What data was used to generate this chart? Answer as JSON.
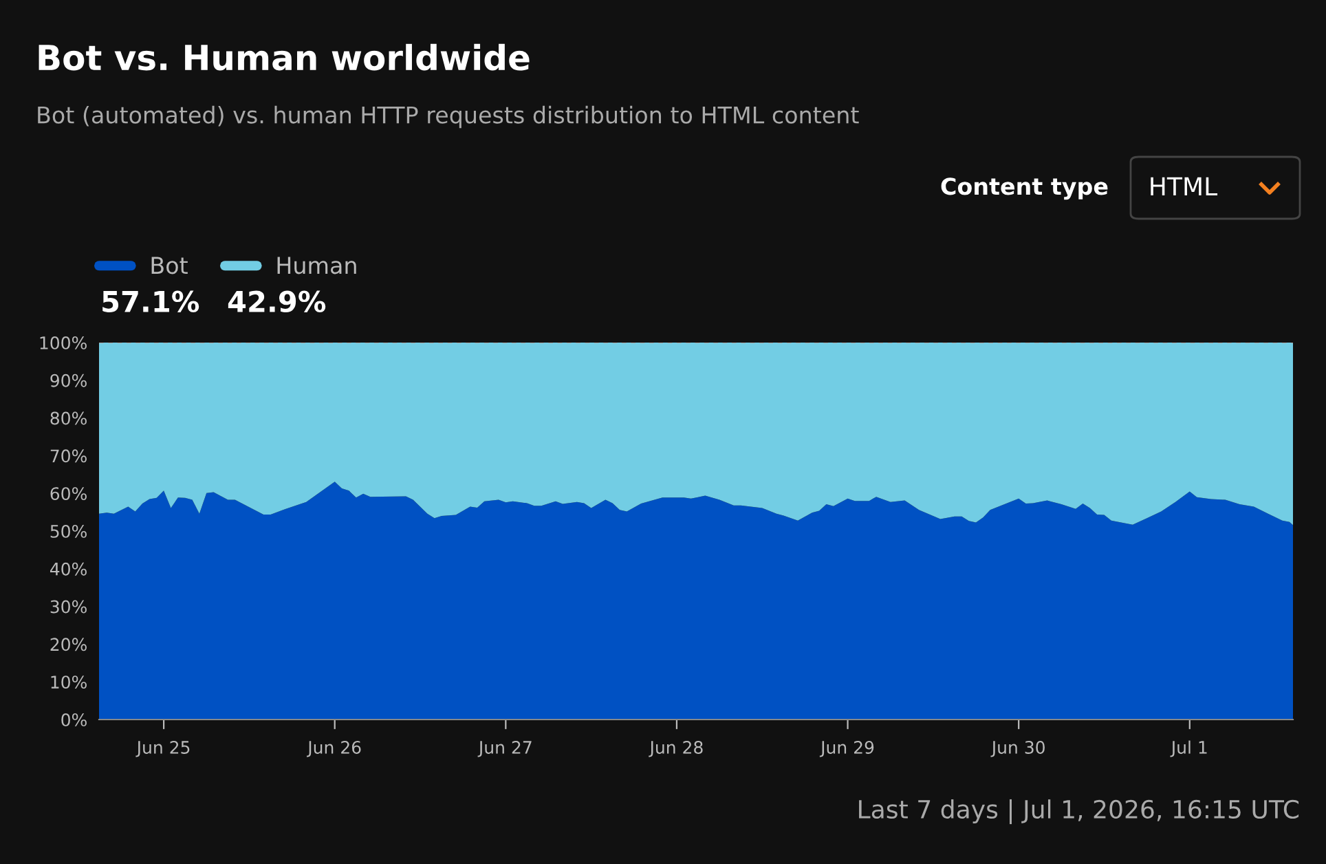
{
  "chart_data": {
    "type": "area",
    "stacked": true,
    "title": "Bot vs. Human worldwide",
    "subtitle": "Bot (automated) vs. human HTTP requests distribution to HTML content",
    "x": [
      "2026-06-24T14:55",
      "2026-06-24T16:00",
      "2026-06-24T17:00",
      "2026-06-24T19:00",
      "2026-06-24T20:00",
      "2026-06-24T21:00",
      "2026-06-24T22:00",
      "2026-06-24T23:00",
      "2026-06-25T00:00",
      "2026-06-25T01:00",
      "2026-06-25T02:00",
      "2026-06-25T03:00",
      "2026-06-25T04:00",
      "2026-06-25T05:00",
      "2026-06-25T06:00",
      "2026-06-25T07:00",
      "2026-06-25T09:00",
      "2026-06-25T10:00",
      "2026-06-25T14:00",
      "2026-06-25T15:00",
      "2026-06-25T17:00",
      "2026-06-25T20:00",
      "2026-06-26T00:00",
      "2026-06-26T01:00",
      "2026-06-26T02:00",
      "2026-06-26T03:00",
      "2026-06-26T04:00",
      "2026-06-26T05:00",
      "2026-06-26T10:00",
      "2026-06-26T11:00",
      "2026-06-26T13:00",
      "2026-06-26T14:00",
      "2026-06-26T15:00",
      "2026-06-26T17:00",
      "2026-06-26T19:00",
      "2026-06-26T20:00",
      "2026-06-26T21:00",
      "2026-06-26T23:00",
      "2026-06-27T00:00",
      "2026-06-27T01:00",
      "2026-06-27T03:00",
      "2026-06-27T04:00",
      "2026-06-27T05:00",
      "2026-06-27T07:00",
      "2026-06-27T08:00",
      "2026-06-27T10:00",
      "2026-06-27T11:00",
      "2026-06-27T12:00",
      "2026-06-27T14:00",
      "2026-06-27T15:00",
      "2026-06-27T16:00",
      "2026-06-27T17:00",
      "2026-06-27T19:00",
      "2026-06-27T22:00",
      "2026-06-28T01:00",
      "2026-06-28T02:00",
      "2026-06-28T03:00",
      "2026-06-28T04:00",
      "2026-06-28T06:00",
      "2026-06-28T08:00",
      "2026-06-28T09:00",
      "2026-06-28T12:00",
      "2026-06-28T14:00",
      "2026-06-28T15:00",
      "2026-06-28T17:00",
      "2026-06-28T19:00",
      "2026-06-28T20:00",
      "2026-06-28T21:00",
      "2026-06-28T22:00",
      "2026-06-29T00:00",
      "2026-06-29T01:00",
      "2026-06-29T03:00",
      "2026-06-29T04:00",
      "2026-06-29T06:00",
      "2026-06-29T08:00",
      "2026-06-29T10:00",
      "2026-06-29T13:00",
      "2026-06-29T15:00",
      "2026-06-29T16:00",
      "2026-06-29T17:00",
      "2026-06-29T18:00",
      "2026-06-29T19:00",
      "2026-06-29T20:00",
      "2026-06-29T22:00",
      "2026-06-30T00:00",
      "2026-06-30T01:00",
      "2026-06-30T02:00",
      "2026-06-30T04:00",
      "2026-06-30T06:00",
      "2026-06-30T08:00",
      "2026-06-30T09:00",
      "2026-06-30T10:00",
      "2026-06-30T11:00",
      "2026-06-30T12:00",
      "2026-06-30T13:00",
      "2026-06-30T14:00",
      "2026-06-30T16:00",
      "2026-06-30T18:00",
      "2026-06-30T20:00",
      "2026-06-30T22:00",
      "2026-07-01T00:00",
      "2026-07-01T01:00",
      "2026-07-01T03:00",
      "2026-07-01T05:00",
      "2026-07-01T07:00",
      "2026-07-01T09:00",
      "2026-07-01T11:00",
      "2026-07-01T13:00",
      "2026-07-01T14:00",
      "2026-07-01T14:30"
    ],
    "series": [
      {
        "name": "Bot",
        "color": "#0051c3",
        "values": [
          54.6,
          54.9,
          54.6,
          56.5,
          55.2,
          57.3,
          58.5,
          58.8,
          60.7,
          56.1,
          58.9,
          58.8,
          58.3,
          54.6,
          60.1,
          60.3,
          58.3,
          58.3,
          54.4,
          54.4,
          55.8,
          57.7,
          63.1,
          61.3,
          60.7,
          58.9,
          59.9,
          59.1,
          59.2,
          58.3,
          54.6,
          53.4,
          54.0,
          54.3,
          56.5,
          56.2,
          57.9,
          58.3,
          57.6,
          57.9,
          57.4,
          56.7,
          56.7,
          57.9,
          57.2,
          57.7,
          57.4,
          56.1,
          58.3,
          57.4,
          55.6,
          55.2,
          57.3,
          58.9,
          58.9,
          58.6,
          59.0,
          59.4,
          58.3,
          56.8,
          56.8,
          56.1,
          54.6,
          54.1,
          52.8,
          54.9,
          55.4,
          57.1,
          56.6,
          58.6,
          58.0,
          58.0,
          59.1,
          57.7,
          58.1,
          55.6,
          53.2,
          53.9,
          53.9,
          52.7,
          52.3,
          53.6,
          55.6,
          57.1,
          58.6,
          57.3,
          57.4,
          58.1,
          57.1,
          55.9,
          57.3,
          56.1,
          54.4,
          54.3,
          52.8,
          52.4,
          51.7,
          53.4,
          55.2,
          57.7,
          60.5,
          59.0,
          58.5,
          58.3,
          57.1,
          56.5,
          54.6,
          52.8,
          52.4,
          51.6
        ]
      },
      {
        "name": "Human",
        "color": "#72cde4",
        "values": [
          45.4,
          45.1,
          45.4,
          43.5,
          44.8,
          42.7,
          41.5,
          41.2,
          39.3,
          43.9,
          41.1,
          41.2,
          41.7,
          45.4,
          39.9,
          39.7,
          41.7,
          41.7,
          45.6,
          45.6,
          44.2,
          42.3,
          36.9,
          38.7,
          39.3,
          41.1,
          40.1,
          40.9,
          40.8,
          41.7,
          45.4,
          46.6,
          46.0,
          45.7,
          43.5,
          43.8,
          42.1,
          41.7,
          42.4,
          42.1,
          42.6,
          43.3,
          43.3,
          42.1,
          42.8,
          42.3,
          42.6,
          43.9,
          41.7,
          42.6,
          44.4,
          44.8,
          42.7,
          41.1,
          41.1,
          41.4,
          41.0,
          40.6,
          41.7,
          43.2,
          43.2,
          43.9,
          45.4,
          45.9,
          47.2,
          45.1,
          44.6,
          42.9,
          43.4,
          41.4,
          42.0,
          42.0,
          40.9,
          42.3,
          41.9,
          44.4,
          46.8,
          46.1,
          46.1,
          47.3,
          47.7,
          46.4,
          44.4,
          42.9,
          41.4,
          42.7,
          42.6,
          41.9,
          42.9,
          44.1,
          42.7,
          43.9,
          45.6,
          45.7,
          47.2,
          47.6,
          48.3,
          46.6,
          44.8,
          42.3,
          39.5,
          41.0,
          41.5,
          41.7,
          42.9,
          43.5,
          45.4,
          47.2,
          47.6,
          48.4
        ]
      }
    ],
    "xlim": [
      "2026-06-24T14:55",
      "2026-07-01T14:30"
    ],
    "xticks": [
      {
        "value": "2026-06-25",
        "label": "Jun 25"
      },
      {
        "value": "2026-06-26",
        "label": "Jun 26"
      },
      {
        "value": "2026-06-27",
        "label": "Jun 27"
      },
      {
        "value": "2026-06-28",
        "label": "Jun 28"
      },
      {
        "value": "2026-06-29",
        "label": "Jun 29"
      },
      {
        "value": "2026-06-30",
        "label": "Jun 30"
      },
      {
        "value": "2026-07-01",
        "label": "Jul 1"
      }
    ],
    "ylim": [
      0,
      100
    ],
    "yticks": [
      {
        "value": 0,
        "label": "0%"
      },
      {
        "value": 10,
        "label": "10%"
      },
      {
        "value": 20,
        "label": "20%"
      },
      {
        "value": 30,
        "label": "30%"
      },
      {
        "value": 40,
        "label": "40%"
      },
      {
        "value": 50,
        "label": "50%"
      },
      {
        "value": 60,
        "label": "60%"
      },
      {
        "value": 70,
        "label": "70%"
      },
      {
        "value": 80,
        "label": "80%"
      },
      {
        "value": 90,
        "label": "90%"
      },
      {
        "value": 100,
        "label": "100%"
      }
    ],
    "legend": "top left",
    "annotations": [
      "57.1%",
      "42.9%",
      "Content type",
      "HTML",
      "Last 7 days | Jul 1, 2026, 16:15 UTC"
    ]
  }
}
